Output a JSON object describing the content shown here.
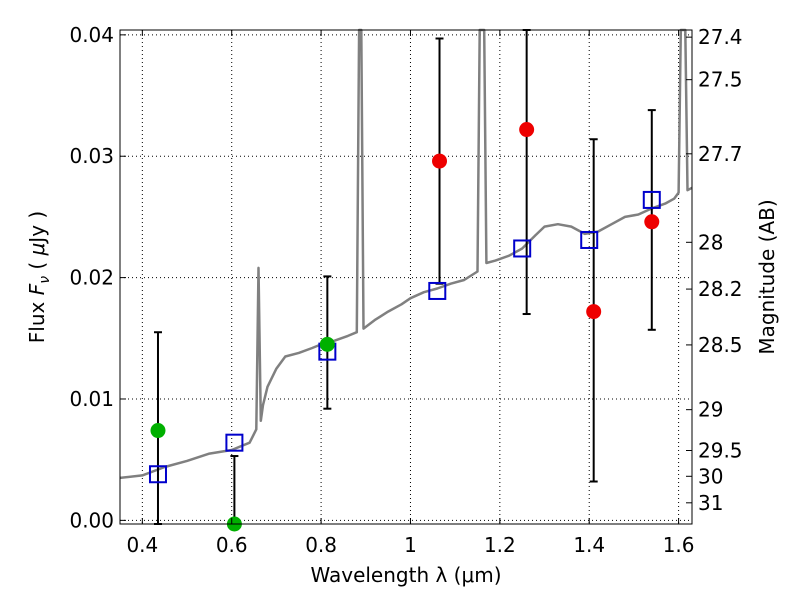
{
  "chart_data": {
    "type": "scatter",
    "xlabel": "Wavelength  λ (μm)",
    "ylabel": "Flux  F_ν  ( μJy )",
    "y2label": "Magnitude (AB)",
    "xlim": [
      0.35,
      1.63
    ],
    "ylim": [
      -0.0003,
      0.0404
    ],
    "grid": true,
    "x_ticks": [
      {
        "value": 0.4,
        "label": "0.4"
      },
      {
        "value": 0.6,
        "label": "0.6"
      },
      {
        "value": 0.8,
        "label": "0.8"
      },
      {
        "value": 1.0,
        "label": "1"
      },
      {
        "value": 1.2,
        "label": "1.2"
      },
      {
        "value": 1.4,
        "label": "1.4"
      },
      {
        "value": 1.6,
        "label": "1.6"
      }
    ],
    "y_ticks": [
      {
        "value": 0.0,
        "label": "0.00"
      },
      {
        "value": 0.01,
        "label": "0.01"
      },
      {
        "value": 0.02,
        "label": "0.02"
      },
      {
        "value": 0.03,
        "label": "0.03"
      },
      {
        "value": 0.04,
        "label": "0.04"
      }
    ],
    "mag_ticks": [
      {
        "mag": 27.4,
        "label": "27.4"
      },
      {
        "mag": 27.5,
        "label": "27.5"
      },
      {
        "mag": 27.7,
        "label": "27.7"
      },
      {
        "mag": 28,
        "label": "28"
      },
      {
        "mag": 28.2,
        "label": "28.2"
      },
      {
        "mag": 28.5,
        "label": "28.5"
      },
      {
        "mag": 29,
        "label": "29"
      },
      {
        "mag": 29.5,
        "label": "29.5"
      },
      {
        "mag": 30,
        "label": "30"
      },
      {
        "mag": 31,
        "label": "31"
      }
    ],
    "sed_model": {
      "name": "model spectrum",
      "color": "#808080",
      "points": [
        [
          0.35,
          0.0035
        ],
        [
          0.4,
          0.0037
        ],
        [
          0.45,
          0.0044
        ],
        [
          0.5,
          0.0049
        ],
        [
          0.55,
          0.0055
        ],
        [
          0.6,
          0.0058
        ],
        [
          0.64,
          0.0064
        ],
        [
          0.655,
          0.0075
        ],
        [
          0.66,
          0.0208
        ],
        [
          0.665,
          0.0082
        ],
        [
          0.67,
          0.0095
        ],
        [
          0.68,
          0.011
        ],
        [
          0.7,
          0.0125
        ],
        [
          0.72,
          0.0135
        ],
        [
          0.75,
          0.0138
        ],
        [
          0.78,
          0.0142
        ],
        [
          0.8,
          0.0145
        ],
        [
          0.83,
          0.0148
        ],
        [
          0.86,
          0.0152
        ],
        [
          0.88,
          0.0155
        ],
        [
          0.885,
          0.0404
        ],
        [
          0.89,
          0.0404
        ],
        [
          0.895,
          0.0158
        ],
        [
          0.92,
          0.0165
        ],
        [
          0.95,
          0.0172
        ],
        [
          0.98,
          0.0178
        ],
        [
          1.0,
          0.0183
        ],
        [
          1.03,
          0.0188
        ],
        [
          1.06,
          0.0191
        ],
        [
          1.09,
          0.0195
        ],
        [
          1.12,
          0.0198
        ],
        [
          1.15,
          0.0205
        ],
        [
          1.155,
          0.0404
        ],
        [
          1.165,
          0.0404
        ],
        [
          1.17,
          0.0212
        ],
        [
          1.19,
          0.0214
        ],
        [
          1.22,
          0.0218
        ],
        [
          1.25,
          0.0224
        ],
        [
          1.28,
          0.0235
        ],
        [
          1.3,
          0.0242
        ],
        [
          1.33,
          0.0244
        ],
        [
          1.36,
          0.0242
        ],
        [
          1.39,
          0.0236
        ],
        [
          1.42,
          0.0238
        ],
        [
          1.45,
          0.0244
        ],
        [
          1.48,
          0.025
        ],
        [
          1.51,
          0.0252
        ],
        [
          1.54,
          0.0257
        ],
        [
          1.57,
          0.0261
        ],
        [
          1.59,
          0.0265
        ],
        [
          1.6,
          0.027
        ],
        [
          1.605,
          0.0404
        ],
        [
          1.615,
          0.0404
        ],
        [
          1.62,
          0.0272
        ],
        [
          1.63,
          0.0274
        ]
      ]
    },
    "series": [
      {
        "name": "model photometry",
        "marker": "open-square",
        "color": "#0000cc",
        "x": [
          0.435,
          0.606,
          0.814,
          1.06,
          1.25,
          1.4,
          1.54
        ],
        "values": [
          0.0038,
          0.0064,
          0.0139,
          0.0189,
          0.0224,
          0.0231,
          0.0264
        ]
      },
      {
        "name": "detections (green)",
        "marker": "filled-circle",
        "color": "#00b000",
        "x": [
          0.435,
          0.606,
          0.814
        ],
        "values": [
          0.0074,
          -0.0003,
          0.0145
        ],
        "err_low": [
          -0.0003,
          -0.0003,
          0.0092
        ],
        "err_high": [
          0.0155,
          0.0053,
          0.0201
        ]
      },
      {
        "name": "detections (red)",
        "marker": "filled-circle",
        "color": "#ee0000",
        "x": [
          1.065,
          1.26,
          1.41,
          1.54
        ],
        "values": [
          0.0296,
          0.0322,
          0.0172,
          0.0246
        ],
        "err_low": [
          0.0195,
          0.017,
          0.0032,
          0.0157
        ],
        "err_high": [
          0.0397,
          0.0404,
          0.0314,
          0.0338
        ]
      }
    ]
  }
}
